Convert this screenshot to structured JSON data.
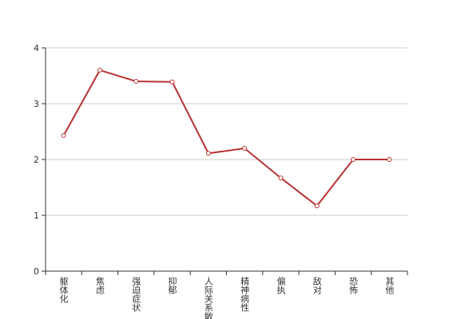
{
  "chart_data": {
    "type": "line",
    "categories": [
      "躯体化",
      "焦虑",
      "强迫症状",
      "抑郁",
      "人际关系敏感",
      "精神病性",
      "偏执",
      "敌对",
      "恐怖",
      "其他"
    ],
    "series": [
      {
        "color": "#b83232",
        "values": [
          2.43,
          3.6,
          3.4,
          3.39,
          2.11,
          2.2,
          1.67,
          1.17,
          2.0,
          2.0
        ]
      }
    ],
    "ylim": [
      0,
      4
    ],
    "yticks": [
      0,
      1,
      2,
      3,
      4
    ],
    "grid": true
  }
}
